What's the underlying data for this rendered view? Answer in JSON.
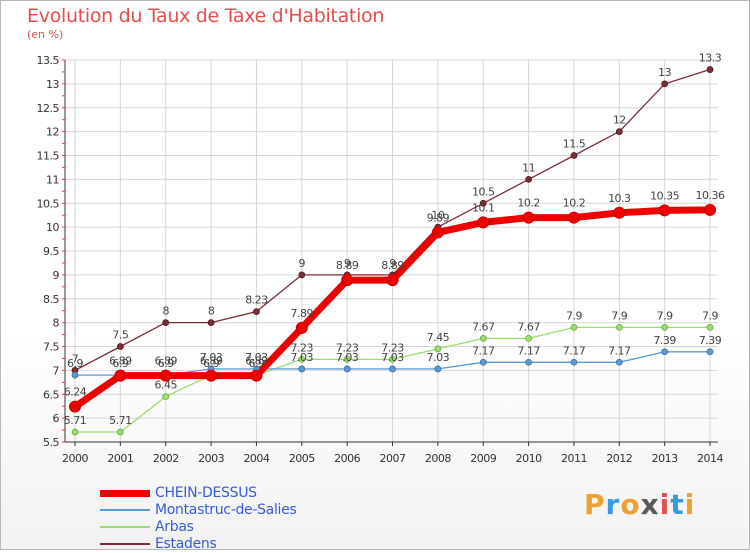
{
  "title": "Evolution du Taux de Taxe d'Habitation",
  "subtitle": "(en %)",
  "logo": {
    "text": "Proxiti",
    "letters": [
      {
        "ch": "P",
        "color": "#f0a030"
      },
      {
        "ch": "r",
        "color": "#3a9ad9"
      },
      {
        "ch": "o",
        "color": "#f0a030"
      },
      {
        "ch": "x",
        "color": "#5a5a5a"
      },
      {
        "ch": "i",
        "color": "#e05050"
      },
      {
        "ch": "t",
        "color": "#3a9ad9"
      },
      {
        "ch": "i",
        "color": "#f0a030"
      }
    ]
  },
  "chart_data": {
    "type": "line",
    "title": "Evolution du Taux de Taxe d'Habitation",
    "ylabel": "(en %)",
    "xlabel": "",
    "x": [
      2000,
      2001,
      2002,
      2003,
      2004,
      2005,
      2006,
      2007,
      2008,
      2009,
      2010,
      2011,
      2012,
      2013,
      2014
    ],
    "ylim": [
      5.5,
      13.5
    ],
    "yticks": [
      5.5,
      6,
      6.5,
      7,
      7.5,
      8,
      8.5,
      9,
      9.5,
      10,
      10.5,
      11,
      11.5,
      12,
      12.5,
      13,
      13.5
    ],
    "legend_position": "bottom-left",
    "series": [
      {
        "name": "CHEIN-DESSUS",
        "color": "#ee0000",
        "values": [
          6.24,
          6.89,
          6.89,
          6.89,
          6.89,
          7.89,
          8.89,
          8.89,
          9.89,
          10.1,
          10.2,
          10.2,
          10.3,
          10.35,
          10.36
        ]
      },
      {
        "name": "Montastruc-de-Salies",
        "color": "#5b9bd5",
        "values": [
          6.9,
          6.9,
          6.9,
          7.03,
          7.03,
          7.03,
          7.03,
          7.03,
          7.03,
          7.17,
          7.17,
          7.17,
          7.17,
          7.39,
          7.39
        ]
      },
      {
        "name": "Arbas",
        "color": "#9bdd6b",
        "values": [
          5.71,
          5.71,
          6.45,
          6.9,
          6.9,
          7.23,
          7.23,
          7.23,
          7.45,
          7.67,
          7.67,
          7.9,
          7.9,
          7.9,
          7.9
        ]
      },
      {
        "name": "Estadens",
        "color": "#7b2e36",
        "values": [
          7.0,
          7.5,
          8,
          8,
          8.23,
          9,
          9,
          9,
          10,
          10.5,
          11,
          11.5,
          12,
          13,
          13.3
        ]
      }
    ],
    "point_labels": {
      "CHEIN-DESSUS": [
        "6.24",
        "6.89",
        "6.89",
        "6.89",
        "6.89",
        "7.89",
        "8.89",
        "8.89",
        "9.89",
        "10.1",
        "10.2",
        "10.2",
        "10.3",
        "10.35",
        "10.36"
      ],
      "Montastruc-de-Salies": [
        "6.9",
        "6.9",
        "6.9",
        "7.03",
        "7.03",
        "7.03",
        "7.03",
        "7.03",
        "7.03",
        "7.17",
        "7.17",
        "7.17",
        "7.17",
        "7.39",
        "7.39"
      ],
      "Arbas": [
        "5.71",
        "5.71",
        "6.45",
        "6.9",
        "6.9",
        "7.23",
        "7.23",
        "7.23",
        "7.45",
        "7.67",
        "7.67",
        "7.9",
        "7.9",
        "7.9",
        "7.9"
      ],
      "Estadens": [
        "7",
        "7.5",
        "8",
        "8",
        "8.23",
        "9",
        "9",
        "9",
        "10",
        "10.5",
        "11",
        "11.5",
        "12",
        "13",
        "13.3"
      ]
    }
  }
}
